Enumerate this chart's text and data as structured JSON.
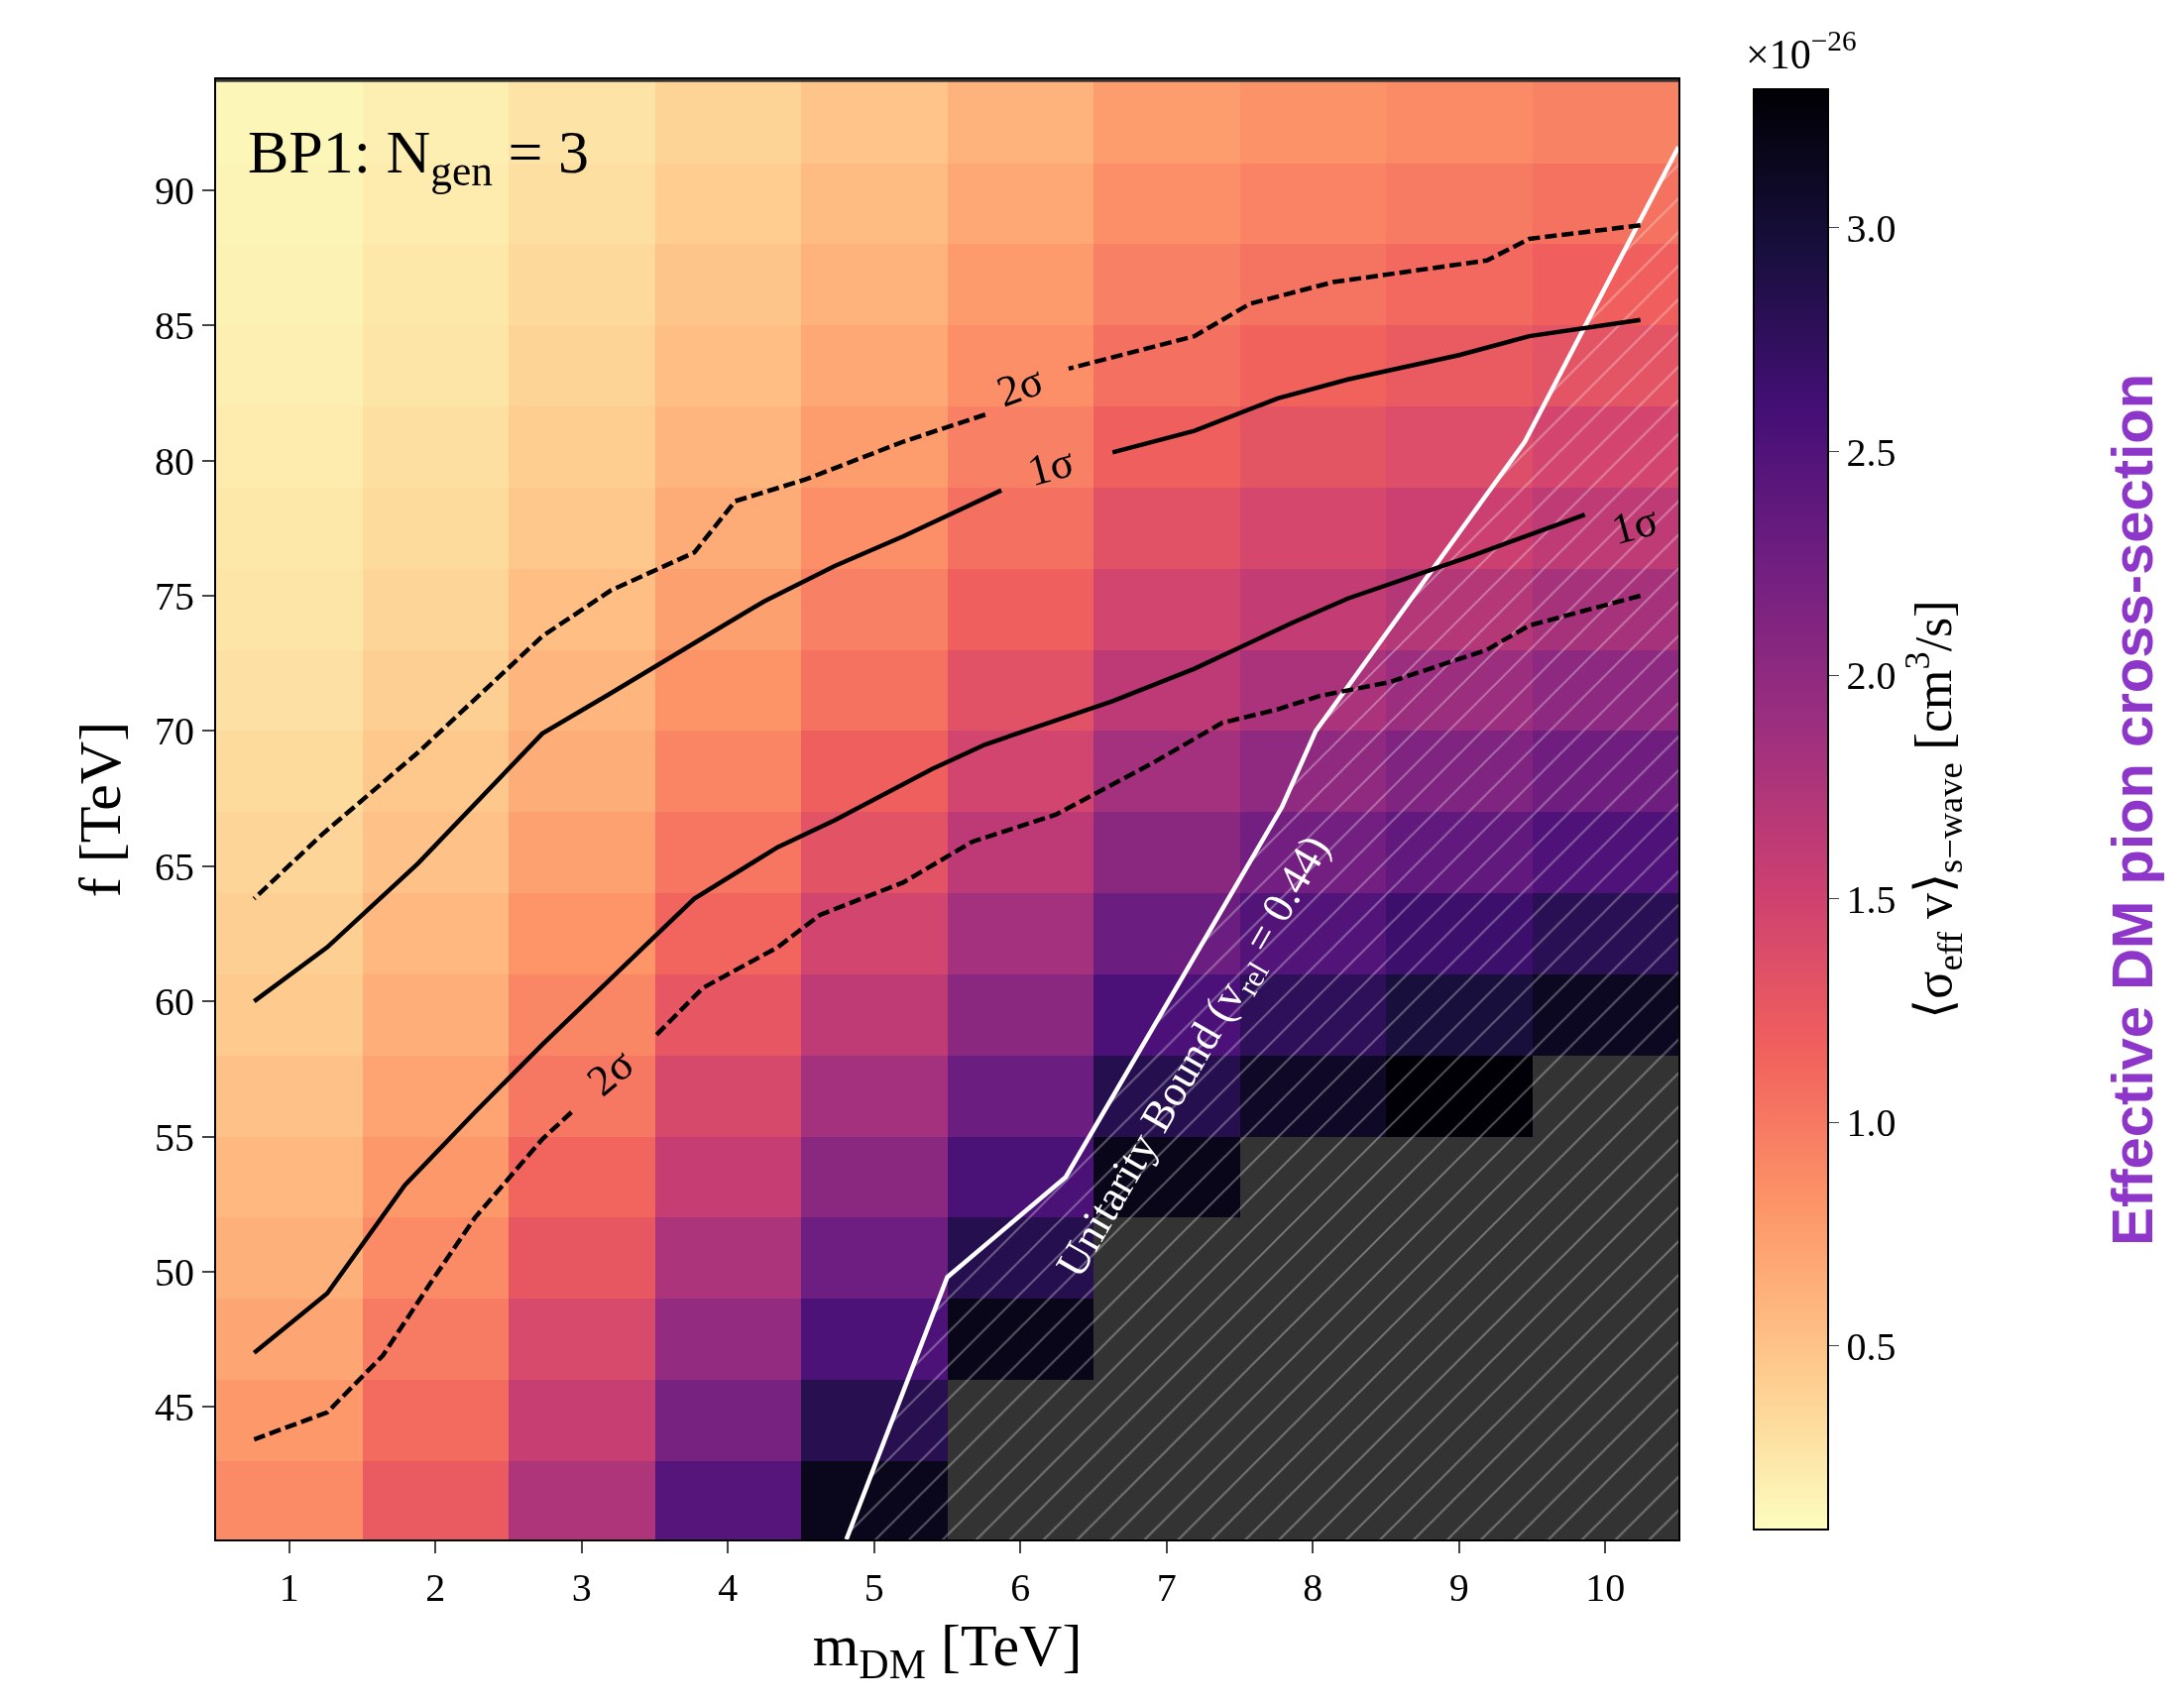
{
  "chart_data": {
    "type": "heatmap",
    "xlabel": "m$_{DM}$ [TeV]",
    "ylabel": "f [TeV]",
    "clabel": "⟨σ$_{eff}$ v⟩$_{s−wave}$ [cm$^{3}$/s]",
    "x": [
      1,
      2,
      3,
      4,
      5,
      6,
      7,
      8,
      9,
      10
    ],
    "y": [
      92.5,
      89.5,
      86.5,
      83.5,
      80.5,
      77.5,
      74.5,
      71.5,
      68.5,
      65.5,
      62.5,
      59.5,
      56.5,
      53.5,
      50.5,
      47.5,
      44.5,
      41.5
    ],
    "cells": [
      [
        0.14,
        0.19,
        0.27,
        0.38,
        0.49,
        0.61,
        0.76,
        0.83,
        0.88,
        0.94
      ],
      [
        0.15,
        0.21,
        0.3,
        0.43,
        0.55,
        0.68,
        0.85,
        0.93,
        0.99,
        1.05
      ],
      [
        0.17,
        0.24,
        0.34,
        0.48,
        0.61,
        0.77,
        0.95,
        1.04,
        1.11,
        1.17
      ],
      [
        0.19,
        0.26,
        0.38,
        0.53,
        0.68,
        0.85,
        1.06,
        1.15,
        1.23,
        1.3
      ],
      [
        0.21,
        0.3,
        0.42,
        0.59,
        0.76,
        0.95,
        1.18,
        1.29,
        1.37,
        1.46
      ],
      [
        0.24,
        0.33,
        0.47,
        0.66,
        0.85,
        1.06,
        1.32,
        1.44,
        1.53,
        1.63
      ],
      [
        0.26,
        0.37,
        0.53,
        0.74,
        0.95,
        1.18,
        1.47,
        1.6,
        1.71,
        1.81
      ],
      [
        0.29,
        0.41,
        0.59,
        0.82,
        1.05,
        1.32,
        1.64,
        1.79,
        1.9,
        2.02
      ],
      [
        0.33,
        0.46,
        0.65,
        0.92,
        1.18,
        1.47,
        1.83,
        1.99,
        2.13,
        2.26
      ],
      [
        0.37,
        0.51,
        0.73,
        1.02,
        1.31,
        1.64,
        2.04,
        2.23,
        2.37,
        2.52
      ],
      [
        0.41,
        0.57,
        0.81,
        1.14,
        1.47,
        1.83,
        2.28,
        2.48,
        2.65,
        2.81
      ],
      [
        0.45,
        0.64,
        0.91,
        1.27,
        1.63,
        2.04,
        2.54,
        2.77,
        2.95,
        3.13
      ],
      [
        0.51,
        0.71,
        1.01,
        1.42,
        1.83,
        2.28,
        2.84,
        3.09,
        3.3,
        null
      ],
      [
        0.57,
        0.79,
        1.13,
        1.58,
        2.04,
        2.55,
        3.17,
        null,
        null,
        null
      ],
      [
        0.63,
        0.88,
        1.26,
        1.77,
        2.27,
        2.84,
        null,
        null,
        null,
        null
      ],
      [
        0.7,
        0.99,
        1.41,
        1.97,
        2.53,
        3.17,
        null,
        null,
        null,
        null
      ],
      [
        0.79,
        1.1,
        1.57,
        2.2,
        2.83,
        null,
        null,
        null,
        null,
        null
      ],
      [
        0.88,
        1.23,
        1.75,
        2.46,
        3.16,
        null,
        null,
        null,
        null,
        null
      ]
    ],
    "clim": [
      0.09,
      3.31
    ],
    "cticks": [
      {
        "value": 0.5,
        "label": "0.5"
      },
      {
        "value": 1.0,
        "label": "1.0"
      },
      {
        "value": 1.5,
        "label": "1.5"
      },
      {
        "value": 2.0,
        "label": "2.0"
      },
      {
        "value": 2.5,
        "label": "2.5"
      },
      {
        "value": 3.0,
        "label": "3.0"
      }
    ],
    "xlim": [
      0.5,
      10.5
    ],
    "xticks": [
      1,
      2,
      3,
      4,
      5,
      6,
      7,
      8,
      9,
      10
    ],
    "ylim": [
      40.1,
      94.1
    ],
    "yticks": [
      45,
      50,
      55,
      60,
      65,
      70,
      75,
      80,
      85,
      90
    ],
    "series": [
      {
        "type": "line",
        "color": "#000000",
        "line_style": "dashed",
        "x": [
          0.76,
          1.23,
          1.88,
          2.73,
          3.2,
          3.77,
          4.05,
          4.53,
          5.2,
          5.76,
          6.0,
          6.33,
          7.19,
          7.57,
          8.14,
          9.19,
          9.48,
          10.24
        ],
        "values": [
          63.8,
          66.2,
          69.2,
          73.5,
          75.2,
          76.6,
          78.5,
          79.3,
          80.7,
          81.7,
          null,
          83.4,
          84.6,
          85.8,
          86.6,
          87.4,
          88.2,
          88.7
        ]
      },
      {
        "type": "line",
        "color": "#000000",
        "line_style": "solid",
        "x": [
          0.76,
          1.26,
          1.88,
          2.73,
          3.2,
          3.97,
          4.25,
          4.73,
          5.2,
          5.87,
          6.2,
          6.63,
          7.19,
          7.76,
          8.24,
          9.0,
          9.48,
          10.24
        ],
        "values": [
          60.0,
          62.0,
          65.1,
          69.9,
          71.4,
          73.9,
          74.8,
          76.1,
          77.2,
          78.9,
          null,
          80.3,
          81.1,
          82.3,
          83.0,
          83.9,
          84.6,
          85.2
        ]
      },
      {
        "type": "line",
        "color": "#000000",
        "line_style": "solid",
        "x": [
          0.76,
          1.26,
          1.79,
          2.27,
          2.73,
          3.5,
          3.77,
          4.34,
          4.73,
          5.4,
          5.76,
          6.63,
          7.19,
          7.86,
          8.24,
          9.1,
          9.76,
          9.86
        ],
        "values": [
          47.0,
          49.2,
          53.2,
          55.9,
          58.4,
          62.4,
          63.8,
          65.7,
          66.7,
          68.6,
          69.5,
          71.1,
          72.3,
          74.0,
          74.9,
          76.5,
          77.8,
          78.0
        ]
      },
      {
        "type": "line",
        "color": "#000000",
        "line_style": "dashed",
        "x": [
          0.76,
          1.26,
          1.64,
          1.98,
          2.27,
          2.73,
          2.93,
          3.2,
          3.5,
          3.83,
          4.34,
          4.63,
          5.2,
          5.67,
          6.24,
          6.9,
          7.38,
          7.76,
          8.05,
          8.52,
          9.19,
          9.48,
          10.24
        ],
        "values": [
          43.8,
          44.8,
          46.9,
          49.7,
          52.0,
          54.9,
          55.9,
          null,
          58.7,
          60.5,
          62.0,
          63.2,
          64.4,
          65.9,
          66.9,
          68.8,
          70.3,
          70.8,
          71.3,
          71.8,
          73.0,
          73.9,
          75.0
        ]
      },
      {
        "type": "area",
        "color": "#ffffff",
        "line_style": "solid",
        "x": [
          4.81,
          5.5,
          6.31,
          7.79,
          8.02,
          9.45,
          10.5
        ],
        "values": [
          40.1,
          49.8,
          53.5,
          67.2,
          70.0,
          80.7,
          91.6
        ]
      }
    ],
    "annotations": [
      "BP1: N$_{gen}$ = 3",
      "2σ",
      "1σ",
      "1σ",
      "2σ",
      "Unitarity Bound (v$_{rel}$ = 0.44)",
      "Effective DM pion cross-section",
      "×10$^{−26}$"
    ]
  }
}
